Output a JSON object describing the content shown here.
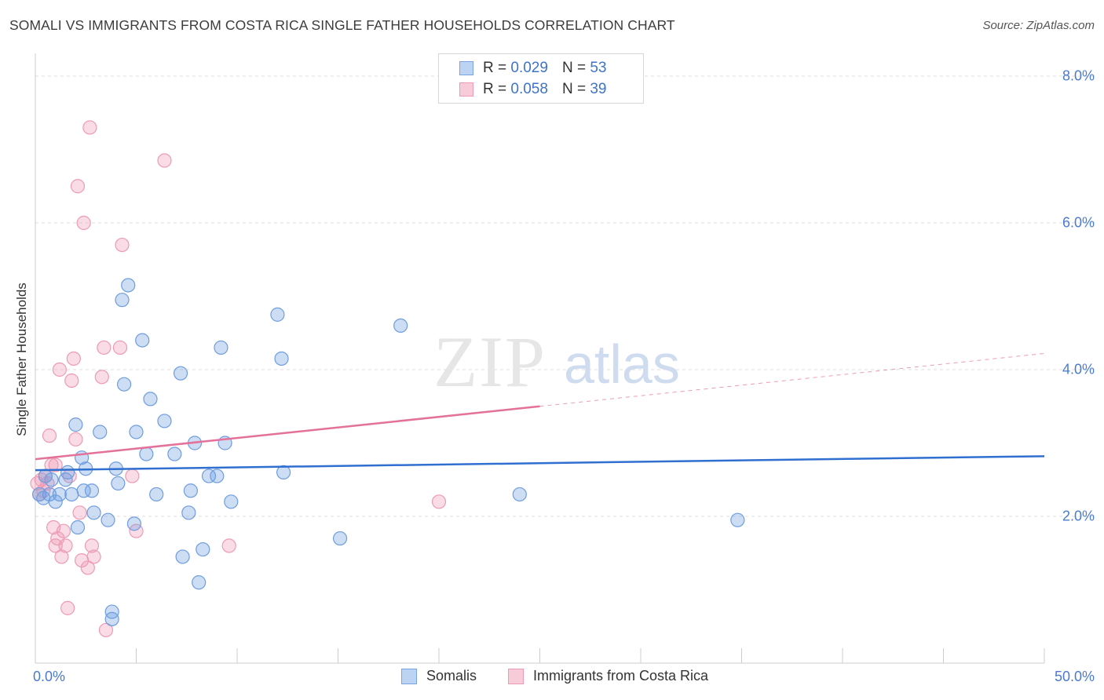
{
  "title": "SOMALI VS IMMIGRANTS FROM COSTA RICA SINGLE FATHER HOUSEHOLDS CORRELATION CHART",
  "source": "Source: ZipAtlas.com",
  "watermark": {
    "zip": "ZIP",
    "atlas": "atlas"
  },
  "legend": {
    "somalis": {
      "r_label": "R =",
      "r_value": "0.029",
      "n_label": "N =",
      "n_value": "53"
    },
    "costa_rica": {
      "r_label": "R =",
      "r_value": "0.058",
      "n_label": "N =",
      "n_value": "39"
    }
  },
  "bottom_legend": {
    "somalis": "Somalis",
    "costa_rica": "Immigrants from Costa Rica"
  },
  "chart_data": {
    "type": "scatter",
    "title": "SOMALI VS IMMIGRANTS FROM COSTA RICA SINGLE FATHER HOUSEHOLDS CORRELATION CHART",
    "xlabel": "",
    "ylabel": "Single Father Households",
    "xlim": [
      0,
      50
    ],
    "ylim": [
      0,
      8.0
    ],
    "x_tick_labels": [
      "0.0%",
      "50.0%"
    ],
    "y_ticks": [
      {
        "value": 2.0,
        "label": "2.0%"
      },
      {
        "value": 4.0,
        "label": "4.0%"
      },
      {
        "value": 6.0,
        "label": "6.0%"
      },
      {
        "value": 8.0,
        "label": "8.0%"
      }
    ],
    "colors": {
      "somalis": "#6e9de0",
      "costa_rica": "#ee9ab5",
      "somalis_line": "#2f6fcf",
      "costa_rica_line": "#e3719a"
    },
    "series": [
      {
        "name": "Somalis",
        "color": "#6e9de0",
        "trend": {
          "x0": 0,
          "y0": 2.63,
          "x1": 50,
          "y1": 2.82
        },
        "points": [
          [
            0.2,
            2.3
          ],
          [
            0.4,
            2.25
          ],
          [
            0.5,
            2.55
          ],
          [
            0.7,
            2.3
          ],
          [
            0.8,
            2.5
          ],
          [
            1.0,
            2.2
          ],
          [
            1.2,
            2.3
          ],
          [
            1.5,
            2.5
          ],
          [
            1.6,
            2.6
          ],
          [
            1.8,
            2.3
          ],
          [
            2.0,
            3.25
          ],
          [
            2.1,
            1.85
          ],
          [
            2.3,
            2.8
          ],
          [
            2.4,
            2.35
          ],
          [
            2.5,
            2.65
          ],
          [
            2.8,
            2.35
          ],
          [
            2.9,
            2.05
          ],
          [
            3.2,
            3.15
          ],
          [
            3.6,
            1.95
          ],
          [
            3.8,
            0.6
          ],
          [
            4.0,
            2.65
          ],
          [
            4.1,
            2.45
          ],
          [
            4.3,
            4.95
          ],
          [
            4.4,
            3.8
          ],
          [
            4.6,
            5.15
          ],
          [
            4.9,
            1.9
          ],
          [
            5.0,
            3.15
          ],
          [
            5.3,
            4.4
          ],
          [
            5.5,
            2.85
          ],
          [
            5.7,
            3.6
          ],
          [
            6.0,
            2.3
          ],
          [
            6.4,
            3.3
          ],
          [
            6.9,
            2.85
          ],
          [
            7.2,
            3.95
          ],
          [
            7.3,
            1.45
          ],
          [
            7.6,
            2.05
          ],
          [
            7.7,
            2.35
          ],
          [
            7.9,
            3.0
          ],
          [
            8.1,
            1.1
          ],
          [
            8.3,
            1.55
          ],
          [
            8.6,
            2.55
          ],
          [
            9.0,
            2.55
          ],
          [
            9.2,
            4.3
          ],
          [
            9.4,
            3.0
          ],
          [
            9.7,
            2.2
          ],
          [
            12.0,
            4.75
          ],
          [
            12.2,
            4.15
          ],
          [
            12.3,
            2.6
          ],
          [
            15.1,
            1.7
          ],
          [
            18.1,
            4.6
          ],
          [
            24.0,
            2.3
          ],
          [
            34.8,
            1.95
          ],
          [
            3.8,
            0.7
          ]
        ]
      },
      {
        "name": "Immigrants from Costa Rica",
        "color": "#ee9ab5",
        "trend": {
          "x0": 0,
          "y0": 2.78,
          "x1": 25,
          "y1": 3.5,
          "dash_x1": 50,
          "dash_y1": 4.22
        },
        "points": [
          [
            0.1,
            2.45
          ],
          [
            0.2,
            2.3
          ],
          [
            0.3,
            2.5
          ],
          [
            0.5,
            2.55
          ],
          [
            0.6,
            2.45
          ],
          [
            0.7,
            3.1
          ],
          [
            0.8,
            2.7
          ],
          [
            0.9,
            1.85
          ],
          [
            1.0,
            1.6
          ],
          [
            1.1,
            1.7
          ],
          [
            1.2,
            4.0
          ],
          [
            1.3,
            1.45
          ],
          [
            1.4,
            1.8
          ],
          [
            1.5,
            1.6
          ],
          [
            1.6,
            0.75
          ],
          [
            1.7,
            2.55
          ],
          [
            1.8,
            3.85
          ],
          [
            1.9,
            4.15
          ],
          [
            2.0,
            3.05
          ],
          [
            2.1,
            6.5
          ],
          [
            2.2,
            2.05
          ],
          [
            2.3,
            1.4
          ],
          [
            2.4,
            6.0
          ],
          [
            2.6,
            1.3
          ],
          [
            2.7,
            7.3
          ],
          [
            2.8,
            1.6
          ],
          [
            2.9,
            1.45
          ],
          [
            3.3,
            3.9
          ],
          [
            3.4,
            4.3
          ],
          [
            3.5,
            0.45
          ],
          [
            4.2,
            4.3
          ],
          [
            4.3,
            5.7
          ],
          [
            4.8,
            2.55
          ],
          [
            5.0,
            1.8
          ],
          [
            6.4,
            6.85
          ],
          [
            9.6,
            1.6
          ],
          [
            20.0,
            2.2
          ],
          [
            0.4,
            2.35
          ],
          [
            1.0,
            2.7
          ]
        ]
      }
    ]
  }
}
